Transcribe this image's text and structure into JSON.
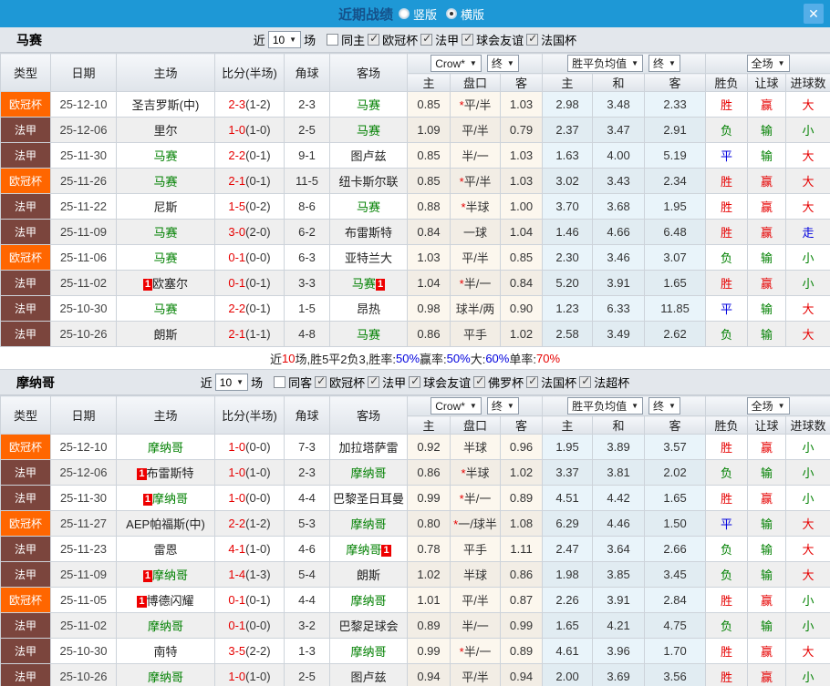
{
  "titlebar": {
    "title": "近期战绩",
    "vertical_label": "竖版",
    "horizontal_label": "横版",
    "vertical_selected": false,
    "horizontal_selected": true
  },
  "colors": {
    "topbar": "#1e98d6",
    "ucl_badge": "#ff6600",
    "ligue1_badge": "#7b453d",
    "win_red": "#e60000",
    "draw_blue": "#0000dd",
    "lose_green": "#008000"
  },
  "table_header": {
    "type": "类型",
    "date": "日期",
    "home": "主场",
    "score": "比分(半场)",
    "corner": "角球",
    "away": "客场",
    "asian_home": "主",
    "asian_handicap": "盘口",
    "asian_away": "客",
    "euro_home": "主",
    "euro_draw": "和",
    "euro_away": "客",
    "wdl": "胜负",
    "handicap_result": "让球",
    "goals": "进球数",
    "company_select": "Crow*",
    "final_select_1": "终",
    "avg_select": "胜平负均值",
    "final_select_2": "终",
    "scope_select": "全场"
  },
  "sections": [
    {
      "team": "马赛",
      "filter": {
        "near_label": "近",
        "count": "10",
        "games_label": "场",
        "same_label": "同主",
        "same_checked": false,
        "leagues": [
          {
            "label": "欧冠杯",
            "checked": true
          },
          {
            "label": "法甲",
            "checked": true
          },
          {
            "label": "球会友谊",
            "checked": true
          },
          {
            "label": "法国杯",
            "checked": true
          }
        ]
      },
      "rows": [
        {
          "league": "欧冠杯",
          "date": "25-12-10",
          "home_card": "",
          "home": "圣吉罗斯(中)",
          "home_green": false,
          "score": "2-3",
          "half": "(1-2)",
          "corners": "2-3",
          "away": "马赛",
          "away_green": true,
          "away_card": "",
          "crown_home": "0.85",
          "handicap": "*平/半",
          "crown_away": "1.03",
          "odds_home": "2.98",
          "odds_draw": "3.48",
          "odds_away": "2.33",
          "wdl": "胜",
          "handicap_result": "赢",
          "goals": "大"
        },
        {
          "league": "法甲",
          "date": "25-12-06",
          "home_card": "",
          "home": "里尔",
          "home_green": false,
          "score": "1-0",
          "half": "(1-0)",
          "corners": "2-5",
          "away": "马赛",
          "away_green": true,
          "away_card": "",
          "crown_home": "1.09",
          "handicap": "平/半",
          "crown_away": "0.79",
          "odds_home": "2.37",
          "odds_draw": "3.47",
          "odds_away": "2.91",
          "wdl": "负",
          "handicap_result": "输",
          "goals": "小"
        },
        {
          "league": "法甲",
          "date": "25-11-30",
          "home_card": "",
          "home": "马赛",
          "home_green": true,
          "score": "2-2",
          "half": "(0-1)",
          "corners": "9-1",
          "away": "图卢兹",
          "away_green": false,
          "away_card": "",
          "crown_home": "0.85",
          "handicap": "半/一",
          "crown_away": "1.03",
          "odds_home": "1.63",
          "odds_draw": "4.00",
          "odds_away": "5.19",
          "wdl": "平",
          "handicap_result": "输",
          "goals": "大"
        },
        {
          "league": "欧冠杯",
          "date": "25-11-26",
          "home_card": "",
          "home": "马赛",
          "home_green": true,
          "score": "2-1",
          "half": "(0-1)",
          "corners": "11-5",
          "away": "纽卡斯尔联",
          "away_green": false,
          "away_card": "",
          "crown_home": "0.85",
          "handicap": "*平/半",
          "crown_away": "1.03",
          "odds_home": "3.02",
          "odds_draw": "3.43",
          "odds_away": "2.34",
          "wdl": "胜",
          "handicap_result": "赢",
          "goals": "大"
        },
        {
          "league": "法甲",
          "date": "25-11-22",
          "home_card": "",
          "home": "尼斯",
          "home_green": false,
          "score": "1-5",
          "half": "(0-2)",
          "corners": "8-6",
          "away": "马赛",
          "away_green": true,
          "away_card": "",
          "crown_home": "0.88",
          "handicap": "*半球",
          "crown_away": "1.00",
          "odds_home": "3.70",
          "odds_draw": "3.68",
          "odds_away": "1.95",
          "wdl": "胜",
          "handicap_result": "赢",
          "goals": "大"
        },
        {
          "league": "法甲",
          "date": "25-11-09",
          "home_card": "",
          "home": "马赛",
          "home_green": true,
          "score": "3-0",
          "half": "(2-0)",
          "corners": "6-2",
          "away": "布雷斯特",
          "away_green": false,
          "away_card": "",
          "crown_home": "0.84",
          "handicap": "一球",
          "crown_away": "1.04",
          "odds_home": "1.46",
          "odds_draw": "4.66",
          "odds_away": "6.48",
          "wdl": "胜",
          "handicap_result": "赢",
          "goals": "走"
        },
        {
          "league": "欧冠杯",
          "date": "25-11-06",
          "home_card": "",
          "home": "马赛",
          "home_green": true,
          "score": "0-1",
          "half": "(0-0)",
          "corners": "6-3",
          "away": "亚特兰大",
          "away_green": false,
          "away_card": "",
          "crown_home": "1.03",
          "handicap": "平/半",
          "crown_away": "0.85",
          "odds_home": "2.30",
          "odds_draw": "3.46",
          "odds_away": "3.07",
          "wdl": "负",
          "handicap_result": "输",
          "goals": "小"
        },
        {
          "league": "法甲",
          "date": "25-11-02",
          "home_card": "1",
          "home": "欧塞尔",
          "home_green": false,
          "score": "0-1",
          "half": "(0-1)",
          "corners": "3-3",
          "away": "马赛",
          "away_green": true,
          "away_card": "1",
          "crown_home": "1.04",
          "handicap": "*半/一",
          "crown_away": "0.84",
          "odds_home": "5.20",
          "odds_draw": "3.91",
          "odds_away": "1.65",
          "wdl": "胜",
          "handicap_result": "赢",
          "goals": "小"
        },
        {
          "league": "法甲",
          "date": "25-10-30",
          "home_card": "",
          "home": "马赛",
          "home_green": true,
          "score": "2-2",
          "half": "(0-1)",
          "corners": "1-5",
          "away": "昂热",
          "away_green": false,
          "away_card": "",
          "crown_home": "0.98",
          "handicap": "球半/两",
          "crown_away": "0.90",
          "odds_home": "1.23",
          "odds_draw": "6.33",
          "odds_away": "11.85",
          "wdl": "平",
          "handicap_result": "输",
          "goals": "大"
        },
        {
          "league": "法甲",
          "date": "25-10-26",
          "home_card": "",
          "home": "朗斯",
          "home_green": false,
          "score": "2-1",
          "half": "(1-1)",
          "corners": "4-8",
          "away": "马赛",
          "away_green": true,
          "away_card": "",
          "crown_home": "0.86",
          "handicap": "平手",
          "crown_away": "1.02",
          "odds_home": "2.58",
          "odds_draw": "3.49",
          "odds_away": "2.62",
          "wdl": "负",
          "handicap_result": "输",
          "goals": "大"
        }
      ],
      "summary": {
        "segments": [
          {
            "t": "近",
            "c": "k"
          },
          {
            "t": "10",
            "c": "r"
          },
          {
            "t": "场,胜5平2负3, ",
            "c": "k"
          },
          {
            "t": "胜率:",
            "c": "k"
          },
          {
            "t": "50%",
            "c": "b"
          },
          {
            "t": " 赢率:",
            "c": "k"
          },
          {
            "t": "50%",
            "c": "b"
          },
          {
            "t": " 大:",
            "c": "k"
          },
          {
            "t": "60%",
            "c": "b"
          },
          {
            "t": " 单率:",
            "c": "k"
          },
          {
            "t": "70%",
            "c": "r"
          }
        ]
      }
    },
    {
      "team": "摩纳哥",
      "filter": {
        "near_label": "近",
        "count": "10",
        "games_label": "场",
        "same_label": "同客",
        "same_checked": false,
        "leagues": [
          {
            "label": "欧冠杯",
            "checked": true
          },
          {
            "label": "法甲",
            "checked": true
          },
          {
            "label": "球会友谊",
            "checked": true
          },
          {
            "label": "佛罗杯",
            "checked": true
          },
          {
            "label": "法国杯",
            "checked": true
          },
          {
            "label": "法超杯",
            "checked": true
          }
        ]
      },
      "rows": [
        {
          "league": "欧冠杯",
          "date": "25-12-10",
          "home_card": "",
          "home": "摩纳哥",
          "home_green": true,
          "score": "1-0",
          "half": "(0-0)",
          "corners": "7-3",
          "away": "加拉塔萨雷",
          "away_green": false,
          "away_card": "",
          "crown_home": "0.92",
          "handicap": "半球",
          "crown_away": "0.96",
          "odds_home": "1.95",
          "odds_draw": "3.89",
          "odds_away": "3.57",
          "wdl": "胜",
          "handicap_result": "赢",
          "goals": "小"
        },
        {
          "league": "法甲",
          "date": "25-12-06",
          "home_card": "1",
          "home": "布雷斯特",
          "home_green": false,
          "score": "1-0",
          "half": "(1-0)",
          "corners": "2-3",
          "away": "摩纳哥",
          "away_green": true,
          "away_card": "",
          "crown_home": "0.86",
          "handicap": "*半球",
          "crown_away": "1.02",
          "odds_home": "3.37",
          "odds_draw": "3.81",
          "odds_away": "2.02",
          "wdl": "负",
          "handicap_result": "输",
          "goals": "小"
        },
        {
          "league": "法甲",
          "date": "25-11-30",
          "home_card": "1",
          "home": "摩纳哥",
          "home_green": true,
          "score": "1-0",
          "half": "(0-0)",
          "corners": "4-4",
          "away": "巴黎圣日耳曼",
          "away_green": false,
          "away_card": "",
          "crown_home": "0.99",
          "handicap": "*半/一",
          "crown_away": "0.89",
          "odds_home": "4.51",
          "odds_draw": "4.42",
          "odds_away": "1.65",
          "wdl": "胜",
          "handicap_result": "赢",
          "goals": "小"
        },
        {
          "league": "欧冠杯",
          "date": "25-11-27",
          "home_card": "",
          "home": "AEP帕福斯(中)",
          "home_green": false,
          "score": "2-2",
          "half": "(1-2)",
          "corners": "5-3",
          "away": "摩纳哥",
          "away_green": true,
          "away_card": "",
          "crown_home": "0.80",
          "handicap": "*一/球半",
          "crown_away": "1.08",
          "odds_home": "6.29",
          "odds_draw": "4.46",
          "odds_away": "1.50",
          "wdl": "平",
          "handicap_result": "输",
          "goals": "大"
        },
        {
          "league": "法甲",
          "date": "25-11-23",
          "home_card": "",
          "home": "雷恩",
          "home_green": false,
          "score": "4-1",
          "half": "(1-0)",
          "corners": "4-6",
          "away": "摩纳哥",
          "away_green": true,
          "away_card": "1",
          "crown_home": "0.78",
          "handicap": "平手",
          "crown_away": "1.11",
          "odds_home": "2.47",
          "odds_draw": "3.64",
          "odds_away": "2.66",
          "wdl": "负",
          "handicap_result": "输",
          "goals": "大"
        },
        {
          "league": "法甲",
          "date": "25-11-09",
          "home_card": "1",
          "home": "摩纳哥",
          "home_green": true,
          "score": "1-4",
          "half": "(1-3)",
          "corners": "5-4",
          "away": "朗斯",
          "away_green": false,
          "away_card": "",
          "crown_home": "1.02",
          "handicap": "半球",
          "crown_away": "0.86",
          "odds_home": "1.98",
          "odds_draw": "3.85",
          "odds_away": "3.45",
          "wdl": "负",
          "handicap_result": "输",
          "goals": "大"
        },
        {
          "league": "欧冠杯",
          "date": "25-11-05",
          "home_card": "1",
          "home": "博德闪耀",
          "home_green": false,
          "score": "0-1",
          "half": "(0-1)",
          "corners": "4-4",
          "away": "摩纳哥",
          "away_green": true,
          "away_card": "",
          "crown_home": "1.01",
          "handicap": "平/半",
          "crown_away": "0.87",
          "odds_home": "2.26",
          "odds_draw": "3.91",
          "odds_away": "2.84",
          "wdl": "胜",
          "handicap_result": "赢",
          "goals": "小"
        },
        {
          "league": "法甲",
          "date": "25-11-02",
          "home_card": "",
          "home": "摩纳哥",
          "home_green": true,
          "score": "0-1",
          "half": "(0-0)",
          "corners": "3-2",
          "away": "巴黎足球会",
          "away_green": false,
          "away_card": "",
          "crown_home": "0.89",
          "handicap": "半/一",
          "crown_away": "0.99",
          "odds_home": "1.65",
          "odds_draw": "4.21",
          "odds_away": "4.75",
          "wdl": "负",
          "handicap_result": "输",
          "goals": "小"
        },
        {
          "league": "法甲",
          "date": "25-10-30",
          "home_card": "",
          "home": "南特",
          "home_green": false,
          "score": "3-5",
          "half": "(2-2)",
          "corners": "1-3",
          "away": "摩纳哥",
          "away_green": true,
          "away_card": "",
          "crown_home": "0.99",
          "handicap": "*半/一",
          "crown_away": "0.89",
          "odds_home": "4.61",
          "odds_draw": "3.96",
          "odds_away": "1.70",
          "wdl": "胜",
          "handicap_result": "赢",
          "goals": "大"
        },
        {
          "league": "法甲",
          "date": "25-10-26",
          "home_card": "",
          "home": "摩纳哥",
          "home_green": true,
          "score": "1-0",
          "half": "(1-0)",
          "corners": "2-5",
          "away": "图卢兹",
          "away_green": false,
          "away_card": "",
          "crown_home": "0.94",
          "handicap": "平/半",
          "crown_away": "0.94",
          "odds_home": "2.00",
          "odds_draw": "3.69",
          "odds_away": "3.56",
          "wdl": "胜",
          "handicap_result": "赢",
          "goals": "小"
        }
      ],
      "summary": null
    }
  ]
}
